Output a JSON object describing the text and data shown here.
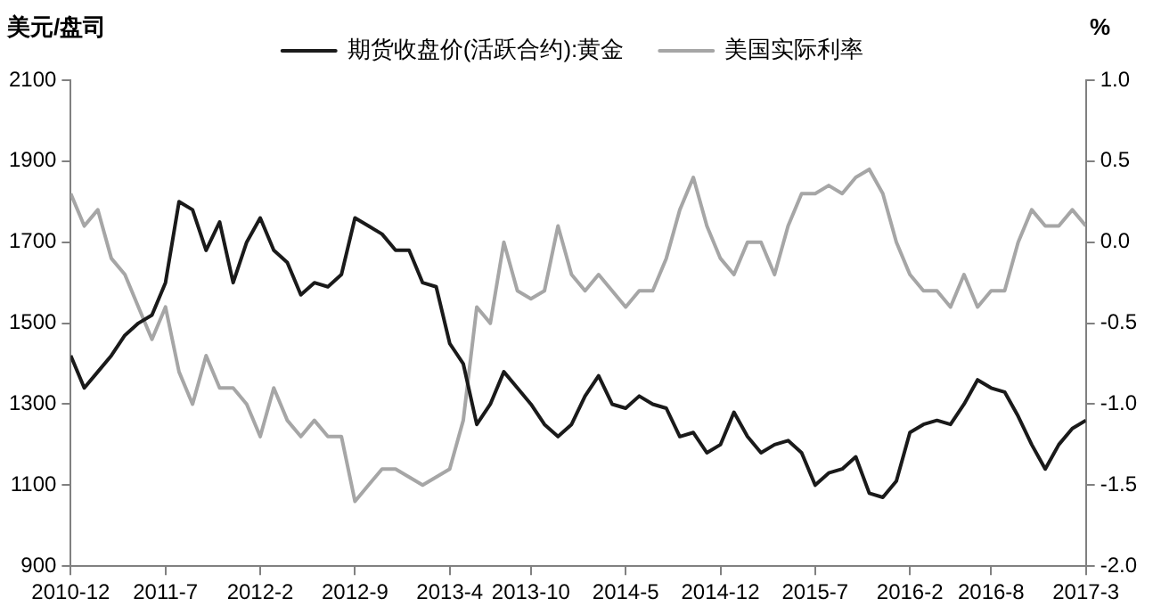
{
  "chart_data": {
    "type": "line",
    "ylabel": "美元/盘司",
    "y2label": "%",
    "x": [
      "2010-12",
      "2011-01",
      "2011-02",
      "2011-03",
      "2011-04",
      "2011-05",
      "2011-06",
      "2011-07",
      "2011-08",
      "2011-09",
      "2011-10",
      "2011-11",
      "2011-12",
      "2012-01",
      "2012-02",
      "2012-03",
      "2012-04",
      "2012-05",
      "2012-06",
      "2012-07",
      "2012-08",
      "2012-09",
      "2012-10",
      "2012-11",
      "2012-12",
      "2013-01",
      "2013-02",
      "2013-03",
      "2013-04",
      "2013-05",
      "2013-06",
      "2013-07",
      "2013-08",
      "2013-09",
      "2013-10",
      "2013-11",
      "2013-12",
      "2014-01",
      "2014-02",
      "2014-03",
      "2014-04",
      "2014-05",
      "2014-06",
      "2014-07",
      "2014-08",
      "2014-09",
      "2014-10",
      "2014-11",
      "2014-12",
      "2015-01",
      "2015-02",
      "2015-03",
      "2015-04",
      "2015-05",
      "2015-06",
      "2015-07",
      "2015-08",
      "2015-09",
      "2015-10",
      "2015-11",
      "2015-12",
      "2016-01",
      "2016-02",
      "2016-03",
      "2016-04",
      "2016-05",
      "2016-06",
      "2016-07",
      "2016-08",
      "2016-09",
      "2016-10",
      "2016-11",
      "2016-12",
      "2017-01",
      "2017-02",
      "2017-03"
    ],
    "series": [
      {
        "name": "期货收盘价(活跃合约):黄金",
        "color": "#1a1a1a",
        "values": [
          1420,
          1340,
          1380,
          1420,
          1470,
          1500,
          1520,
          1600,
          1800,
          1780,
          1680,
          1750,
          1600,
          1700,
          1760,
          1680,
          1650,
          1570,
          1600,
          1590,
          1620,
          1760,
          1740,
          1720,
          1680,
          1680,
          1600,
          1590,
          1450,
          1400,
          1250,
          1300,
          1380,
          1340,
          1300,
          1250,
          1220,
          1250,
          1320,
          1370,
          1300,
          1290,
          1320,
          1300,
          1290,
          1220,
          1230,
          1180,
          1200,
          1280,
          1220,
          1180,
          1200,
          1210,
          1180,
          1100,
          1130,
          1140,
          1170,
          1080,
          1070,
          1110,
          1230,
          1250,
          1260,
          1250,
          1300,
          1360,
          1340,
          1330,
          1270,
          1200,
          1140,
          1200,
          1240,
          1260
        ]
      },
      {
        "name": "美国实际利率",
        "color": "#a6a6a6",
        "axis": "y2",
        "values": [
          0.3,
          0.1,
          0.2,
          -0.1,
          -0.2,
          -0.4,
          -0.6,
          -0.4,
          -0.8,
          -1.0,
          -0.7,
          -0.9,
          -0.9,
          -1.0,
          -1.2,
          -0.9,
          -1.1,
          -1.2,
          -1.1,
          -1.2,
          -1.2,
          -1.6,
          -1.5,
          -1.4,
          -1.4,
          -1.45,
          -1.5,
          -1.45,
          -1.4,
          -1.1,
          -0.4,
          -0.5,
          0.0,
          -0.3,
          -0.35,
          -0.3,
          0.1,
          -0.2,
          -0.3,
          -0.2,
          -0.3,
          -0.4,
          -0.3,
          -0.3,
          -0.1,
          0.2,
          0.4,
          0.1,
          -0.1,
          -0.2,
          0.0,
          0.0,
          -0.2,
          0.1,
          0.3,
          0.3,
          0.35,
          0.3,
          0.4,
          0.45,
          0.3,
          0.0,
          -0.2,
          -0.3,
          -0.3,
          -0.4,
          -0.2,
          -0.4,
          -0.3,
          -0.3,
          0.0,
          0.2,
          0.1,
          0.1,
          0.2,
          0.1
        ]
      }
    ],
    "xlim": [
      "2010-12",
      "2017-03"
    ],
    "xticks": [
      "2010-12",
      {
        "value": "2011-07",
        "label": "2011-7"
      },
      {
        "value": "2012-02",
        "label": "2012-2"
      },
      {
        "value": "2012-09",
        "label": "2012-9"
      },
      {
        "value": "2013-04",
        "label": "2013-4"
      },
      "2013-10",
      {
        "value": "2014-05",
        "label": "2014-5"
      },
      "2014-12",
      {
        "value": "2015-07",
        "label": "2015-7"
      },
      {
        "value": "2016-02",
        "label": "2016-2"
      },
      {
        "value": "2016-08",
        "label": "2016-8"
      },
      {
        "value": "2017-03",
        "label": "2017-3"
      }
    ],
    "ylim": [
      900,
      2100
    ],
    "yticks": [
      900,
      1100,
      1300,
      1500,
      1700,
      1900,
      2100
    ],
    "y2lim": [
      -2.0,
      1.0
    ],
    "y2ticks": [
      {
        "value": -2,
        "label": "-2.0"
      },
      {
        "value": -1.5,
        "label": "-1.5"
      },
      {
        "value": -1,
        "label": "-1.0"
      },
      {
        "value": -0.5,
        "label": "-0.5"
      },
      {
        "value": 0,
        "label": "0.0"
      },
      {
        "value": 0.5,
        "label": "0.5"
      },
      {
        "value": 1,
        "label": "1.0"
      }
    ],
    "grid": false,
    "legend": "top",
    "marker": "none",
    "line_style": "solid"
  }
}
